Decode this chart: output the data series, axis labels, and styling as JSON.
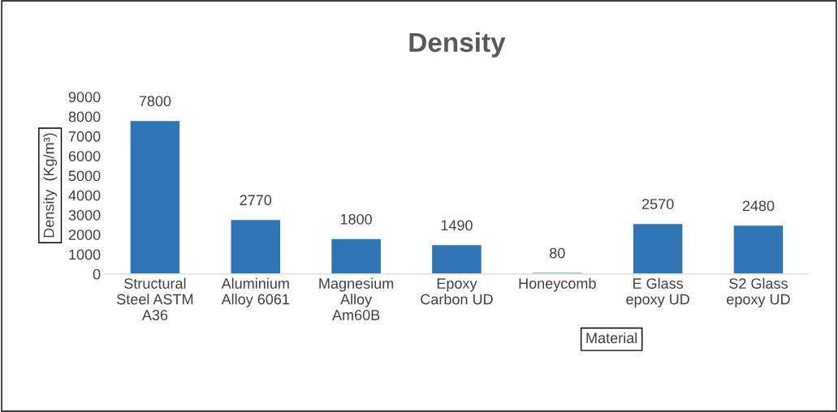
{
  "chart_data": {
    "type": "bar",
    "title": "Density",
    "xlabel": "Material",
    "ylabel": "Density  (Kg/m³)",
    "categories": [
      "Structural\nSteel ASTM\nA36",
      "Aluminium\nAlloy 6061",
      "Magnesium\nAlloy\nAm60B",
      "Epoxy\nCarbon UD",
      "Honeycomb",
      "E Glass\nepoxy UD",
      "S2 Glass\nepoxy UD"
    ],
    "values": [
      7800,
      2770,
      1800,
      1490,
      80,
      2570,
      2480
    ],
    "color": "#2e75b6",
    "ylim": [
      0,
      9000
    ],
    "yticks": [
      0,
      1000,
      2000,
      3000,
      4000,
      5000,
      6000,
      7000,
      8000,
      9000
    ],
    "grid": false,
    "data_labels": true
  }
}
